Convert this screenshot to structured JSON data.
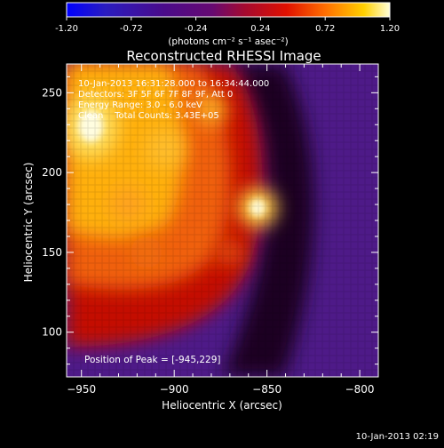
{
  "colorbar": {
    "ticks": [
      "-1.20",
      "-0.72",
      "-0.24",
      "0.24",
      "0.72",
      "1.20"
    ],
    "unit_label": "(photons cm⁻² s⁻¹ asec⁻²)"
  },
  "chart_data": {
    "type": "heatmap",
    "title": "Reconstructed RHESSI Image",
    "xlabel": "Heliocentric X (arcsec)",
    "ylabel": "Heliocentric Y (arcsec)",
    "xlim": [
      -958,
      -790
    ],
    "ylim": [
      72,
      268
    ],
    "xticks": [
      -950,
      -900,
      -850,
      -800
    ],
    "yticks": [
      100,
      150,
      200,
      250
    ],
    "xtick_labels": [
      "−950",
      "−900",
      "−850",
      "−800"
    ],
    "ytick_labels": [
      "100",
      "150",
      "200",
      "250"
    ],
    "colorbar_range": [
      -1.2,
      1.2
    ],
    "colormap": "hot",
    "peak": [
      -945,
      229
    ],
    "secondary_peak": [
      -855,
      178
    ],
    "annotations": [
      "10-Jan-2013 16:31:28.000 to 16:34:44.000",
      "Detectors: 3F 5F 6F 7F 8F 9F, Att 0",
      "Energy Range: 3.0 - 6.0 keV",
      "Clean    Total Counts: 3.43E+05"
    ],
    "peak_label": "Position of Peak = [-945,229]",
    "timestamp": "10-Jan-2013 02:19"
  }
}
